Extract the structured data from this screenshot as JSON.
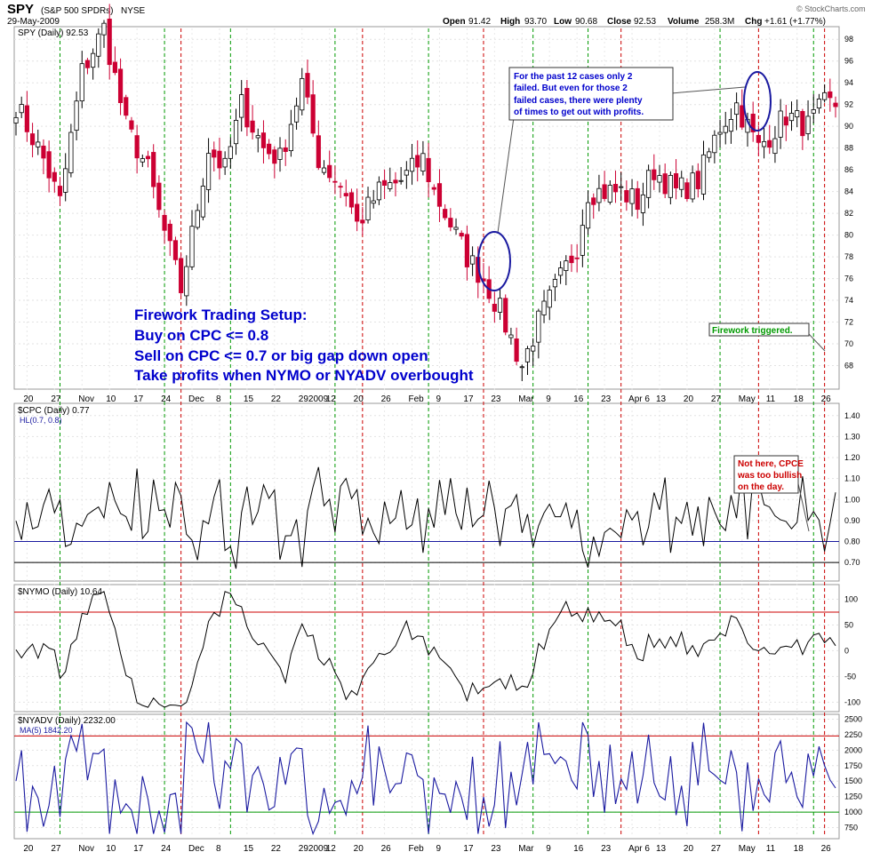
{
  "header": {
    "symbol": "SPY",
    "name": "(S&P 500 SPDRs)",
    "exchange": "NYSE",
    "date": "29-May-2009",
    "open_label": "Open",
    "open": "91.42",
    "high_label": "High",
    "high": "93.70",
    "low_label": "Low",
    "low": "90.68",
    "close_label": "Close",
    "close": "92.53",
    "volume_label": "Volume",
    "volume": "258.3M",
    "chg_label": "Chg",
    "chg": "+1.61 (+1.77%)",
    "copyright": "© StockCharts.com"
  },
  "x_axis_labels": [
    "20",
    "27",
    "Nov",
    "10",
    "17",
    "24",
    "Dec",
    "8",
    "15",
    "22",
    "292009",
    "12",
    "20",
    "26",
    "Feb",
    "9",
    "17",
    "23",
    "Mar",
    "9",
    "16",
    "23",
    "Apr 6",
    "13",
    "20",
    "27",
    "May",
    "11",
    "18",
    "26"
  ],
  "colors": {
    "up": "#000000",
    "down": "#cc0033",
    "green_line": "#009900",
    "red_line": "#cc0000",
    "blue": "#1a1aa0",
    "annotation_blue": "#0000cc"
  },
  "annotations": {
    "setup_lines": [
      "Firework Trading Setup:",
      "Buy on CPC <= 0.8",
      "Sell on CPC <= 0.7 or big gap down open",
      "Take profits when NYMO or NYADV overbought"
    ],
    "callout_lines": [
      "For the past 12 cases only 2",
      "failed. But even for those 2",
      "failed cases, there were plenty",
      "of times to get out with profits."
    ],
    "triggered": "Firework triggered.",
    "cpce_lines": [
      "Not here, CPCE",
      "was too bullish",
      "on the day."
    ]
  },
  "chart_data": [
    {
      "type": "candlestick",
      "title": "SPY (Daily) 92.53",
      "ylim": [
        66,
        99
      ],
      "y_ticks": [
        68,
        70,
        72,
        74,
        76,
        78,
        80,
        82,
        84,
        86,
        88,
        90,
        92,
        94,
        96,
        98
      ],
      "close_anchors": [
        [
          0,
          92
        ],
        [
          5,
          87
        ],
        [
          8,
          83
        ],
        [
          12,
          95
        ],
        [
          16,
          99
        ],
        [
          20,
          90
        ],
        [
          24,
          86
        ],
        [
          26,
          82
        ],
        [
          30,
          75
        ],
        [
          32,
          80
        ],
        [
          35,
          88
        ],
        [
          38,
          86
        ],
        [
          41,
          92
        ],
        [
          45,
          88
        ],
        [
          48,
          87
        ],
        [
          52,
          94
        ],
        [
          55,
          87
        ],
        [
          60,
          84
        ],
        [
          62,
          81
        ],
        [
          66,
          84
        ],
        [
          70,
          85
        ],
        [
          74,
          87
        ],
        [
          76,
          84
        ],
        [
          82,
          78
        ],
        [
          85,
          76
        ],
        [
          88,
          73
        ],
        [
          92,
          68
        ],
        [
          95,
          72
        ],
        [
          98,
          75
        ],
        [
          102,
          79
        ],
        [
          104,
          84
        ],
        [
          110,
          84
        ],
        [
          113,
          83
        ],
        [
          116,
          86
        ],
        [
          120,
          84
        ],
        [
          124,
          85
        ],
        [
          128,
          90
        ],
        [
          131,
          92
        ],
        [
          135,
          88
        ],
        [
          140,
          91
        ],
        [
          144,
          90
        ],
        [
          147,
          92
        ]
      ],
      "setup_lines": {
        "green_days": [
          8,
          27,
          39,
          58,
          75,
          94,
          104,
          128,
          145
        ],
        "red_days": [
          30,
          63,
          85,
          110,
          135,
          147
        ]
      }
    },
    {
      "type": "line",
      "title": "$CPC (Daily) 0.77",
      "series": [
        {
          "name": "HL(0.7, 0.8)",
          "values": [
            0.7,
            0.8
          ]
        }
      ],
      "ylim": [
        0.62,
        1.45
      ],
      "y_ticks": [
        0.7,
        0.8,
        0.9,
        1.0,
        1.1,
        1.2,
        1.3,
        1.4
      ],
      "y_tick_labels": [
        "0.70",
        "0.80",
        "0.90",
        "1.00",
        "1.10",
        "1.20",
        "1.30",
        "1.40"
      ],
      "hlines": [
        0.8,
        0.7
      ]
    },
    {
      "type": "line",
      "title": "$NYMO (Daily) 10.64",
      "ylim": [
        -115,
        125
      ],
      "y_ticks": [
        -100,
        -50,
        0,
        50,
        100
      ],
      "hlines": [
        75
      ]
    },
    {
      "type": "line",
      "title": "$NYADV (Daily) 2232.00",
      "series": [
        {
          "name": "MA(5) 1842.20"
        }
      ],
      "ylim": [
        600,
        2550
      ],
      "y_ticks": [
        750,
        1000,
        1250,
        1500,
        1750,
        2000,
        2250,
        2500
      ],
      "hlines": [
        2230,
        1000
      ]
    }
  ]
}
